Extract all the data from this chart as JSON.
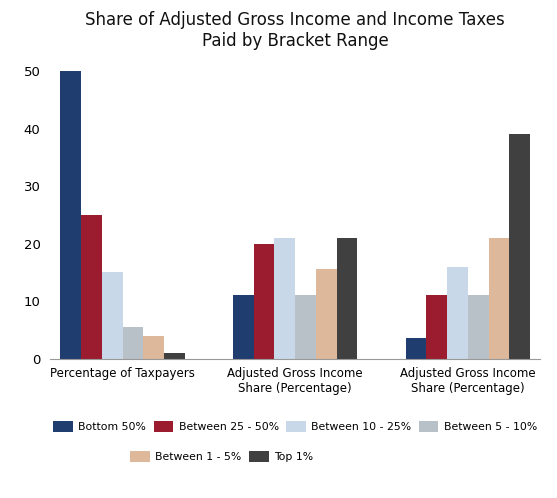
{
  "title": "Share of Adjusted Gross Income and Income Taxes\nPaid by Bracket Range",
  "categories": [
    "Percentage of Taxpayers",
    "Adjusted Gross Income\nShare (Percentage)",
    "Adjusted Gross Income\nShare (Percentage)"
  ],
  "series": {
    "Bottom 50%": [
      50,
      11,
      3.5
    ],
    "Between 25 - 50%": [
      25,
      20,
      11
    ],
    "Between 10 - 25%": [
      15,
      21,
      16
    ],
    "Between 5 - 10%": [
      5.5,
      11,
      11
    ],
    "Between 1 - 5%": [
      4,
      15.5,
      21
    ],
    "Top 1%": [
      1,
      21,
      39
    ]
  },
  "colors": {
    "Bottom 50%": "#1f3d6e",
    "Between 25 - 50%": "#9b1c2e",
    "Between 10 - 25%": "#c8d8e8",
    "Between 5 - 10%": "#b8c0c8",
    "Between 1 - 5%": "#ddb89a",
    "Top 1%": "#404040"
  },
  "ylim": [
    0,
    52
  ],
  "yticks": [
    0,
    10,
    20,
    30,
    40,
    50
  ],
  "background_color": "#ffffff",
  "bar_width": 0.12,
  "legend_row1": [
    "Bottom 50%",
    "Between 25 - 50%",
    "Between 10 - 25%",
    "Between 5 - 10%"
  ],
  "legend_row2": [
    "Between 1 - 5%",
    "Top 1%"
  ]
}
